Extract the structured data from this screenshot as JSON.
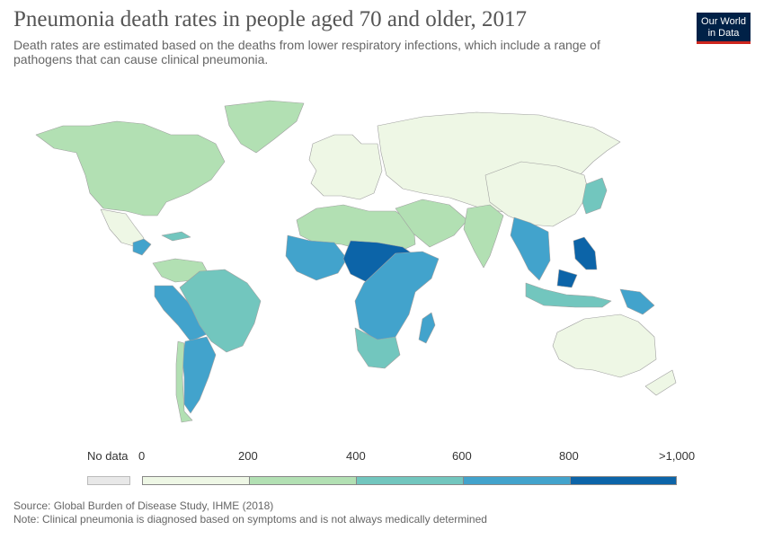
{
  "header": {
    "title": "Pneumonia death rates in people aged 70 and older, 2017",
    "subtitle": "Death rates are estimated based on the deaths from lower respiratory infections, which include a range of pathogens that can cause clinical pneumonia.",
    "logo_line1": "Our World",
    "logo_line2": "in Data"
  },
  "legend": {
    "no_data_label": "No data",
    "no_data_color": "#e8e8e8",
    "tick_labels": [
      "0",
      "200",
      "400",
      "600",
      "800",
      ">1,000"
    ],
    "bins": [
      {
        "range": [
          0,
          200
        ],
        "color": "#eef7e5"
      },
      {
        "range": [
          200,
          400
        ],
        "color": "#b2e0b3"
      },
      {
        "range": [
          400,
          600
        ],
        "color": "#72c6be"
      },
      {
        "range": [
          600,
          800
        ],
        "color": "#42a3cc"
      },
      {
        "range": [
          800,
          1000
        ],
        "color": "#0c64a8"
      }
    ]
  },
  "regions": [
    {
      "name": "North America & Greenland",
      "band": 1
    },
    {
      "name": "Central America",
      "band": 0
    },
    {
      "name": "Guatemala & Honduras",
      "band": 3
    },
    {
      "name": "Caribbean",
      "band": 2
    },
    {
      "name": "Colombia & Venezuela",
      "band": 1
    },
    {
      "name": "Peru & Bolivia",
      "band": 3
    },
    {
      "name": "Brazil",
      "band": 2
    },
    {
      "name": "Argentina",
      "band": 3
    },
    {
      "name": "Chile",
      "band": 1
    },
    {
      "name": "Western Europe",
      "band": 0
    },
    {
      "name": "Russia & Central Asia",
      "band": 0
    },
    {
      "name": "North Africa",
      "band": 1
    },
    {
      "name": "West Africa",
      "band": 3
    },
    {
      "name": "Sahel & Central Africa",
      "band": 4
    },
    {
      "name": "East Africa",
      "band": 3
    },
    {
      "name": "Southern Africa",
      "band": 2
    },
    {
      "name": "Madagascar",
      "band": 3
    },
    {
      "name": "Middle East",
      "band": 1
    },
    {
      "name": "India",
      "band": 1
    },
    {
      "name": "China & Mongolia",
      "band": 0
    },
    {
      "name": "Mainland Southeast Asia",
      "band": 3
    },
    {
      "name": "Philippines",
      "band": 4
    },
    {
      "name": "Indonesia",
      "band": 2
    },
    {
      "name": "Papua New Guinea",
      "band": 3
    },
    {
      "name": "Japan",
      "band": 2
    },
    {
      "name": "Australia & New Zealand",
      "band": 0
    }
  ],
  "footer": {
    "source": "Source: Global Burden of Disease Study, IHME (2018)",
    "note": "Note: Clinical pneumonia is diagnosed based on symptoms and is not always medically determined"
  }
}
